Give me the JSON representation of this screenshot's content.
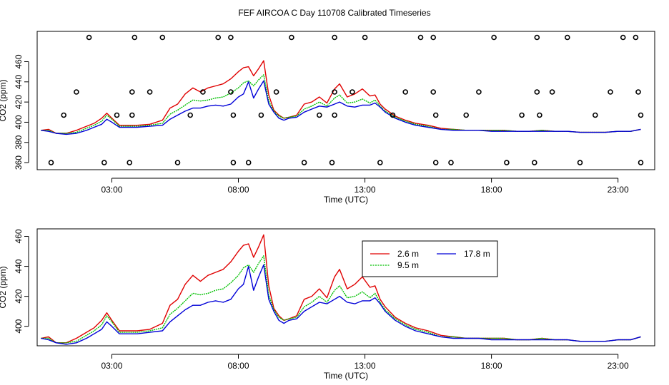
{
  "figure_title": "FEF AIRCOA C  Day 110708  Calibrated Timeseries",
  "colors": {
    "red": "#e00000",
    "green": "#00c000",
    "blue": "#0000d8",
    "axis": "#000000"
  },
  "chart_data": [
    {
      "type": "scatter",
      "title": "FEF AIRCOA C  Day 110708  Calibrated Timeseries",
      "xlabel": "Time (UTC)",
      "ylabel": "CO2 (ppm)",
      "xlim": [
        0.05,
        24.45
      ],
      "ylim": [
        353,
        490
      ],
      "xticks": [
        3,
        8,
        13,
        18,
        23
      ],
      "xtick_labels": [
        "03:00",
        "08:00",
        "13:00",
        "18:00",
        "23:00"
      ],
      "yticks": [
        360,
        380,
        400,
        420,
        440,
        460
      ],
      "ytick_labels": [
        "360",
        "380",
        "400",
        "420",
        "440",
        "460"
      ],
      "grid": false,
      "marker": "open-circle",
      "points": [
        {
          "x": 2.1,
          "y": 484
        },
        {
          "x": 3.9,
          "y": 484
        },
        {
          "x": 5.0,
          "y": 484
        },
        {
          "x": 7.2,
          "y": 484
        },
        {
          "x": 7.7,
          "y": 484
        },
        {
          "x": 10.1,
          "y": 484
        },
        {
          "x": 11.8,
          "y": 484
        },
        {
          "x": 13.0,
          "y": 484
        },
        {
          "x": 15.2,
          "y": 484
        },
        {
          "x": 15.7,
          "y": 484
        },
        {
          "x": 18.1,
          "y": 484
        },
        {
          "x": 19.8,
          "y": 484
        },
        {
          "x": 21.0,
          "y": 484
        },
        {
          "x": 23.2,
          "y": 484
        },
        {
          "x": 23.7,
          "y": 484
        },
        {
          "x": 1.6,
          "y": 430
        },
        {
          "x": 3.8,
          "y": 430
        },
        {
          "x": 4.5,
          "y": 430
        },
        {
          "x": 6.6,
          "y": 430
        },
        {
          "x": 7.7,
          "y": 430
        },
        {
          "x": 9.5,
          "y": 430
        },
        {
          "x": 11.8,
          "y": 430
        },
        {
          "x": 12.5,
          "y": 430
        },
        {
          "x": 14.6,
          "y": 430
        },
        {
          "x": 15.7,
          "y": 430
        },
        {
          "x": 17.5,
          "y": 430
        },
        {
          "x": 19.8,
          "y": 430
        },
        {
          "x": 20.4,
          "y": 430
        },
        {
          "x": 22.7,
          "y": 430
        },
        {
          "x": 23.8,
          "y": 430
        },
        {
          "x": 1.1,
          "y": 407
        },
        {
          "x": 3.2,
          "y": 407
        },
        {
          "x": 3.8,
          "y": 407
        },
        {
          "x": 6.1,
          "y": 407
        },
        {
          "x": 7.8,
          "y": 407
        },
        {
          "x": 8.9,
          "y": 407
        },
        {
          "x": 11.2,
          "y": 407
        },
        {
          "x": 11.8,
          "y": 407
        },
        {
          "x": 14.1,
          "y": 407
        },
        {
          "x": 15.8,
          "y": 407
        },
        {
          "x": 17.0,
          "y": 407
        },
        {
          "x": 19.2,
          "y": 407
        },
        {
          "x": 19.9,
          "y": 407
        },
        {
          "x": 22.1,
          "y": 407
        },
        {
          "x": 23.9,
          "y": 407
        },
        {
          "x": 0.6,
          "y": 360
        },
        {
          "x": 2.7,
          "y": 360
        },
        {
          "x": 3.7,
          "y": 360
        },
        {
          "x": 5.6,
          "y": 360
        },
        {
          "x": 7.8,
          "y": 360
        },
        {
          "x": 8.4,
          "y": 360
        },
        {
          "x": 10.6,
          "y": 360
        },
        {
          "x": 11.7,
          "y": 360
        },
        {
          "x": 13.6,
          "y": 360
        },
        {
          "x": 15.8,
          "y": 360
        },
        {
          "x": 16.4,
          "y": 360
        },
        {
          "x": 18.6,
          "y": 360
        },
        {
          "x": 19.7,
          "y": 360
        },
        {
          "x": 21.5,
          "y": 360
        },
        {
          "x": 23.9,
          "y": 360
        }
      ],
      "x": [
        0.2,
        0.5,
        0.8,
        1.2,
        1.6,
        2.0,
        2.3,
        2.6,
        2.8,
        3.0,
        3.3,
        3.6,
        4.0,
        4.5,
        5.0,
        5.3,
        5.6,
        5.9,
        6.2,
        6.5,
        6.8,
        7.1,
        7.4,
        7.7,
        8.0,
        8.2,
        8.4,
        8.6,
        8.8,
        9.0,
        9.2,
        9.4,
        9.6,
        9.8,
        10.0,
        10.3,
        10.6,
        10.9,
        11.2,
        11.5,
        11.8,
        12.0,
        12.3,
        12.6,
        12.9,
        13.2,
        13.4,
        13.6,
        13.8,
        14.2,
        14.6,
        15.0,
        15.5,
        16.0,
        16.5,
        17.0,
        17.5,
        18.0,
        18.5,
        19.0,
        19.5,
        20.0,
        20.5,
        21.0,
        21.5,
        22.0,
        22.5,
        23.0,
        23.5,
        23.9
      ],
      "series": [
        {
          "name": "2.6 m",
          "color": "#e00000",
          "values": [
            392,
            393,
            389,
            389,
            392,
            396,
            399,
            404,
            409,
            404,
            397,
            397,
            397,
            398,
            402,
            414,
            418,
            428,
            434,
            430,
            434,
            436,
            438,
            443,
            450,
            454,
            455,
            446,
            453,
            461,
            427,
            412,
            407,
            404,
            405,
            407,
            418,
            420,
            425,
            419,
            433,
            438,
            425,
            428,
            433,
            426,
            427,
            418,
            413,
            406,
            402,
            399,
            397,
            394,
            393,
            392,
            392,
            392,
            392,
            391,
            391,
            392,
            391,
            391,
            390,
            390,
            390,
            391,
            391,
            393
          ]
        },
        {
          "name": "9.5 m",
          "color": "#00c000",
          "values": [
            392,
            392,
            389,
            389,
            390,
            394,
            397,
            401,
            407,
            403,
            396,
            396,
            396,
            397,
            399,
            408,
            412,
            417,
            422,
            421,
            422,
            424,
            425,
            429,
            434,
            439,
            441,
            436,
            442,
            447,
            421,
            411,
            406,
            404,
            405,
            406,
            413,
            416,
            420,
            416,
            424,
            427,
            419,
            420,
            423,
            419,
            422,
            416,
            411,
            405,
            401,
            398,
            396,
            393,
            393,
            392,
            392,
            392,
            392,
            391,
            391,
            392,
            391,
            391,
            390,
            390,
            390,
            391,
            391,
            393
          ]
        },
        {
          "name": "17.8 m",
          "color": "#0000d8",
          "values": [
            392,
            391,
            389,
            388,
            389,
            392,
            395,
            398,
            403,
            400,
            395,
            395,
            395,
            396,
            397,
            403,
            407,
            411,
            414,
            414,
            416,
            417,
            416,
            418,
            425,
            428,
            440,
            424,
            433,
            441,
            418,
            410,
            404,
            402,
            404,
            405,
            410,
            413,
            416,
            415,
            418,
            420,
            416,
            415,
            417,
            417,
            419,
            415,
            410,
            404,
            400,
            397,
            395,
            393,
            392,
            392,
            392,
            391,
            391,
            391,
            391,
            391,
            391,
            391,
            390,
            390,
            390,
            391,
            391,
            393
          ]
        }
      ]
    },
    {
      "type": "line",
      "xlabel": "Time (UTC)",
      "ylabel": "CO2 (ppm)",
      "xlim": [
        0.05,
        24.45
      ],
      "ylim": [
        387,
        465
      ],
      "xticks": [
        3,
        8,
        13,
        18,
        23
      ],
      "xtick_labels": [
        "03:00",
        "08:00",
        "13:00",
        "18:00",
        "23:00"
      ],
      "yticks": [
        400,
        420,
        440,
        460
      ],
      "ytick_labels": [
        "400",
        "420",
        "440",
        "460"
      ],
      "grid": false,
      "legend_position": "top-center",
      "legend": [
        "2.6 m",
        "17.8 m",
        "9.5 m"
      ],
      "series_ref": "same series as upper panel"
    }
  ]
}
